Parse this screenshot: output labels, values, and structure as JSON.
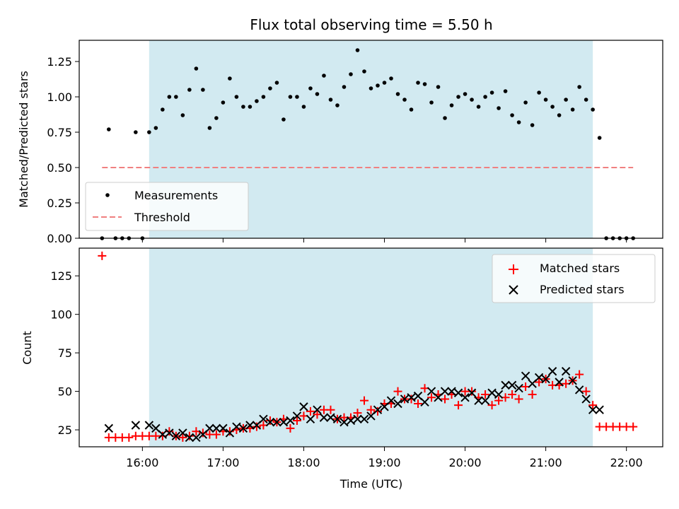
{
  "figure_title": "Flux total observing time = 5.50 h",
  "colors": {
    "shade": "#add8e6",
    "measurement": "#000000",
    "threshold": "#f08080",
    "matched": "#ff0000",
    "predicted": "#000000"
  },
  "chart_data": [
    {
      "type": "scatter",
      "panel": "top",
      "title": "Flux total observing time = 5.50 h",
      "xlabel": "",
      "ylabel": "Matched/Predicted stars",
      "xlim": [
        "15:13",
        "22:27"
      ],
      "ylim": [
        0,
        1.4
      ],
      "yticks": [
        "0.00",
        "0.25",
        "0.50",
        "0.75",
        "1.00",
        "1.25"
      ],
      "shaded_interval": [
        "16:05",
        "21:35"
      ],
      "legend": {
        "position": "lower-left",
        "entries": [
          "Measurements",
          "Threshold"
        ]
      },
      "series": [
        {
          "name": "Measurements",
          "marker": "dot",
          "x": [
            "15:30",
            "15:35",
            "15:40",
            "15:45",
            "15:50",
            "15:55",
            "16:00",
            "16:05",
            "16:10",
            "16:15",
            "16:20",
            "16:25",
            "16:30",
            "16:35",
            "16:40",
            "16:45",
            "16:50",
            "16:55",
            "17:00",
            "17:05",
            "17:10",
            "17:15",
            "17:20",
            "17:25",
            "17:30",
            "17:35",
            "17:40",
            "17:45",
            "17:50",
            "17:55",
            "18:00",
            "18:05",
            "18:10",
            "18:15",
            "18:20",
            "18:25",
            "18:30",
            "18:35",
            "18:40",
            "18:45",
            "18:50",
            "18:55",
            "19:00",
            "19:05",
            "19:10",
            "19:15",
            "19:20",
            "19:25",
            "19:30",
            "19:35",
            "19:40",
            "19:45",
            "19:50",
            "19:55",
            "20:00",
            "20:05",
            "20:10",
            "20:15",
            "20:20",
            "20:25",
            "20:30",
            "20:35",
            "20:40",
            "20:45",
            "20:50",
            "20:55",
            "21:00",
            "21:05",
            "21:10",
            "21:15",
            "21:20",
            "21:25",
            "21:30",
            "21:35",
            "21:40",
            "21:45",
            "21:50",
            "21:55",
            "22:00",
            "22:05"
          ],
          "y": [
            0,
            0.77,
            0,
            0,
            0,
            0.75,
            0,
            0.75,
            0.78,
            0.91,
            1.0,
            1.0,
            0.87,
            1.05,
            1.2,
            1.05,
            0.78,
            0.85,
            0.96,
            1.13,
            1.0,
            0.93,
            0.93,
            0.97,
            1.0,
            1.06,
            1.1,
            0.84,
            1.0,
            1.0,
            0.93,
            1.06,
            1.02,
            1.15,
            0.98,
            0.94,
            1.07,
            1.16,
            1.33,
            1.18,
            1.06,
            1.08,
            1.1,
            1.13,
            1.02,
            0.98,
            0.91,
            1.1,
            1.09,
            0.96,
            1.07,
            0.85,
            0.94,
            1.0,
            1.02,
            0.98,
            0.93,
            1.0,
            1.03,
            0.92,
            1.04,
            0.87,
            0.82,
            0.96,
            0.8,
            1.03,
            0.98,
            0.93,
            0.87,
            0.98,
            0.91,
            1.07,
            0.98,
            0.91,
            0.71,
            0,
            0,
            0,
            0,
            0
          ]
        },
        {
          "name": "Threshold",
          "marker": "dashed-line",
          "x": [
            "15:30",
            "22:05"
          ],
          "y": [
            0.5,
            0.5
          ]
        }
      ]
    },
    {
      "type": "scatter",
      "panel": "bottom",
      "xlabel": "Time (UTC)",
      "ylabel": "Count",
      "xlim": [
        "15:13",
        "22:27"
      ],
      "ylim": [
        14,
        143
      ],
      "xticks": [
        "16:00",
        "17:00",
        "18:00",
        "19:00",
        "20:00",
        "21:00",
        "22:00"
      ],
      "yticks": [
        "25",
        "50",
        "75",
        "100",
        "125"
      ],
      "shaded_interval": [
        "16:05",
        "21:35"
      ],
      "legend": {
        "position": "upper-right",
        "entries": [
          "Matched stars",
          "Predicted stars"
        ]
      },
      "series": [
        {
          "name": "Matched stars",
          "marker": "plus",
          "x": [
            "15:30",
            "15:35",
            "15:40",
            "15:45",
            "15:50",
            "15:55",
            "16:00",
            "16:05",
            "16:10",
            "16:15",
            "16:20",
            "16:25",
            "16:30",
            "16:35",
            "16:40",
            "16:45",
            "16:50",
            "16:55",
            "17:00",
            "17:05",
            "17:10",
            "17:15",
            "17:20",
            "17:25",
            "17:30",
            "17:35",
            "17:40",
            "17:45",
            "17:50",
            "17:55",
            "18:00",
            "18:05",
            "18:10",
            "18:15",
            "18:20",
            "18:25",
            "18:30",
            "18:35",
            "18:40",
            "18:45",
            "18:50",
            "18:55",
            "19:00",
            "19:05",
            "19:10",
            "19:15",
            "19:20",
            "19:25",
            "19:30",
            "19:35",
            "19:40",
            "19:45",
            "19:50",
            "19:55",
            "20:00",
            "20:05",
            "20:10",
            "20:15",
            "20:20",
            "20:25",
            "20:30",
            "20:35",
            "20:40",
            "20:45",
            "20:50",
            "20:55",
            "21:00",
            "21:05",
            "21:10",
            "21:15",
            "21:20",
            "21:25",
            "21:30",
            "21:35",
            "21:40",
            "21:45",
            "21:50",
            "21:55",
            "22:00",
            "22:05"
          ],
          "y": [
            138,
            20,
            20,
            20,
            20,
            21,
            21,
            21,
            21,
            21,
            24,
            21,
            20,
            21,
            24,
            23,
            22,
            22,
            24,
            24,
            25,
            26,
            26,
            27,
            28,
            31,
            30,
            32,
            26,
            31,
            34,
            37,
            35,
            38,
            38,
            32,
            33,
            33,
            36,
            44,
            38,
            37,
            42,
            42,
            50,
            45,
            45,
            42,
            52,
            46,
            48,
            45,
            48,
            41,
            50,
            50,
            46,
            48,
            41,
            44,
            46,
            48,
            45,
            53,
            48,
            56,
            58,
            54,
            54,
            55,
            57,
            61,
            50,
            41,
            27,
            27,
            27,
            27,
            27,
            27
          ]
        },
        {
          "name": "Predicted stars",
          "marker": "x",
          "x": [
            "15:35",
            "15:55",
            "16:05",
            "16:10",
            "16:15",
            "16:20",
            "16:25",
            "16:30",
            "16:35",
            "16:40",
            "16:45",
            "16:50",
            "16:55",
            "17:00",
            "17:05",
            "17:10",
            "17:15",
            "17:20",
            "17:25",
            "17:30",
            "17:35",
            "17:40",
            "17:45",
            "17:50",
            "17:55",
            "18:00",
            "18:05",
            "18:10",
            "18:15",
            "18:20",
            "18:25",
            "18:30",
            "18:35",
            "18:40",
            "18:45",
            "18:50",
            "18:55",
            "19:00",
            "19:05",
            "19:10",
            "19:15",
            "19:20",
            "19:25",
            "19:30",
            "19:35",
            "19:40",
            "19:45",
            "19:50",
            "19:55",
            "20:00",
            "20:05",
            "20:10",
            "20:15",
            "20:20",
            "20:25",
            "20:30",
            "20:35",
            "20:40",
            "20:45",
            "20:50",
            "20:55",
            "21:00",
            "21:05",
            "21:10",
            "21:15",
            "21:20",
            "21:25",
            "21:30",
            "21:35",
            "21:40"
          ],
          "y": [
            26,
            28,
            28,
            26,
            22,
            23,
            21,
            23,
            20,
            20,
            22,
            26,
            26,
            26,
            23,
            27,
            26,
            28,
            28,
            32,
            30,
            30,
            30,
            31,
            34,
            40,
            32,
            38,
            33,
            33,
            32,
            30,
            31,
            32,
            32,
            34,
            38,
            40,
            44,
            42,
            45,
            46,
            47,
            43,
            50,
            46,
            50,
            50,
            49,
            46,
            49,
            44,
            44,
            49,
            48,
            54,
            54,
            52,
            60,
            55,
            59,
            58,
            63,
            56,
            63,
            57,
            51,
            45,
            38,
            38
          ]
        }
      ]
    }
  ]
}
